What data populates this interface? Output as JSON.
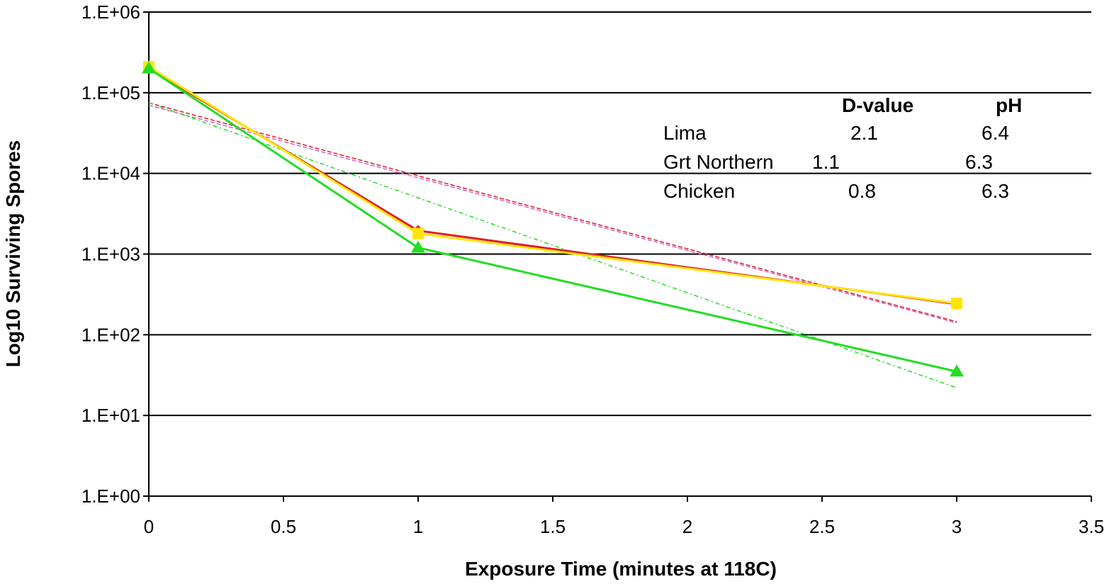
{
  "chart_data": {
    "type": "line",
    "title": "",
    "xlabel": "Exposure Time (minutes at 118C)",
    "ylabel": "Log10 Surviving Spores",
    "xlim": [
      0,
      3.5
    ],
    "ylim": [
      1,
      1000000
    ],
    "yscale": "log",
    "grid": "horizontal",
    "x_ticks": [
      "0",
      "0.5",
      "1",
      "1.5",
      "2",
      "2.5",
      "3",
      "3.5"
    ],
    "y_ticks": [
      "1.E+00",
      "1.E+01",
      "1.E+02",
      "1.E+03",
      "1.E+04",
      "1.E+05",
      "1.E+06"
    ],
    "series": [
      {
        "color": "#e31b23",
        "marker": "diamond",
        "x": [
          0,
          1,
          3
        ],
        "y": [
          200000,
          1950.0,
          240
        ]
      },
      {
        "color": "#ffe600",
        "marker": "square",
        "x": [
          0,
          1,
          3
        ],
        "y": [
          210000,
          1800,
          245
        ]
      },
      {
        "color": "#22dd22",
        "marker": "triangle",
        "x": [
          0,
          1,
          3
        ],
        "y": [
          200000,
          1200,
          35
        ]
      }
    ],
    "trendlines": [
      {
        "color": "#e31b23",
        "style": "dashed",
        "x": [
          0,
          3
        ],
        "y": [
          75000,
          145
        ]
      },
      {
        "color": "#cc66cc",
        "style": "dashed",
        "x": [
          0,
          3
        ],
        "y": [
          70000,
          140
        ]
      },
      {
        "color": "#22dd22",
        "style": "dashdot",
        "x": [
          0,
          3
        ],
        "y": [
          75000,
          22
        ]
      }
    ],
    "annotation_table": {
      "headers": [
        "D-value",
        "pH"
      ],
      "rows": [
        {
          "name": "Lima",
          "d_value": "2.1",
          "ph": "6.4"
        },
        {
          "name": "Grt Northern",
          "d_value": "1.1",
          "ph": "6.3"
        },
        {
          "name": "Chicken",
          "d_value": "0.8",
          "ph": "6.3"
        }
      ]
    }
  }
}
